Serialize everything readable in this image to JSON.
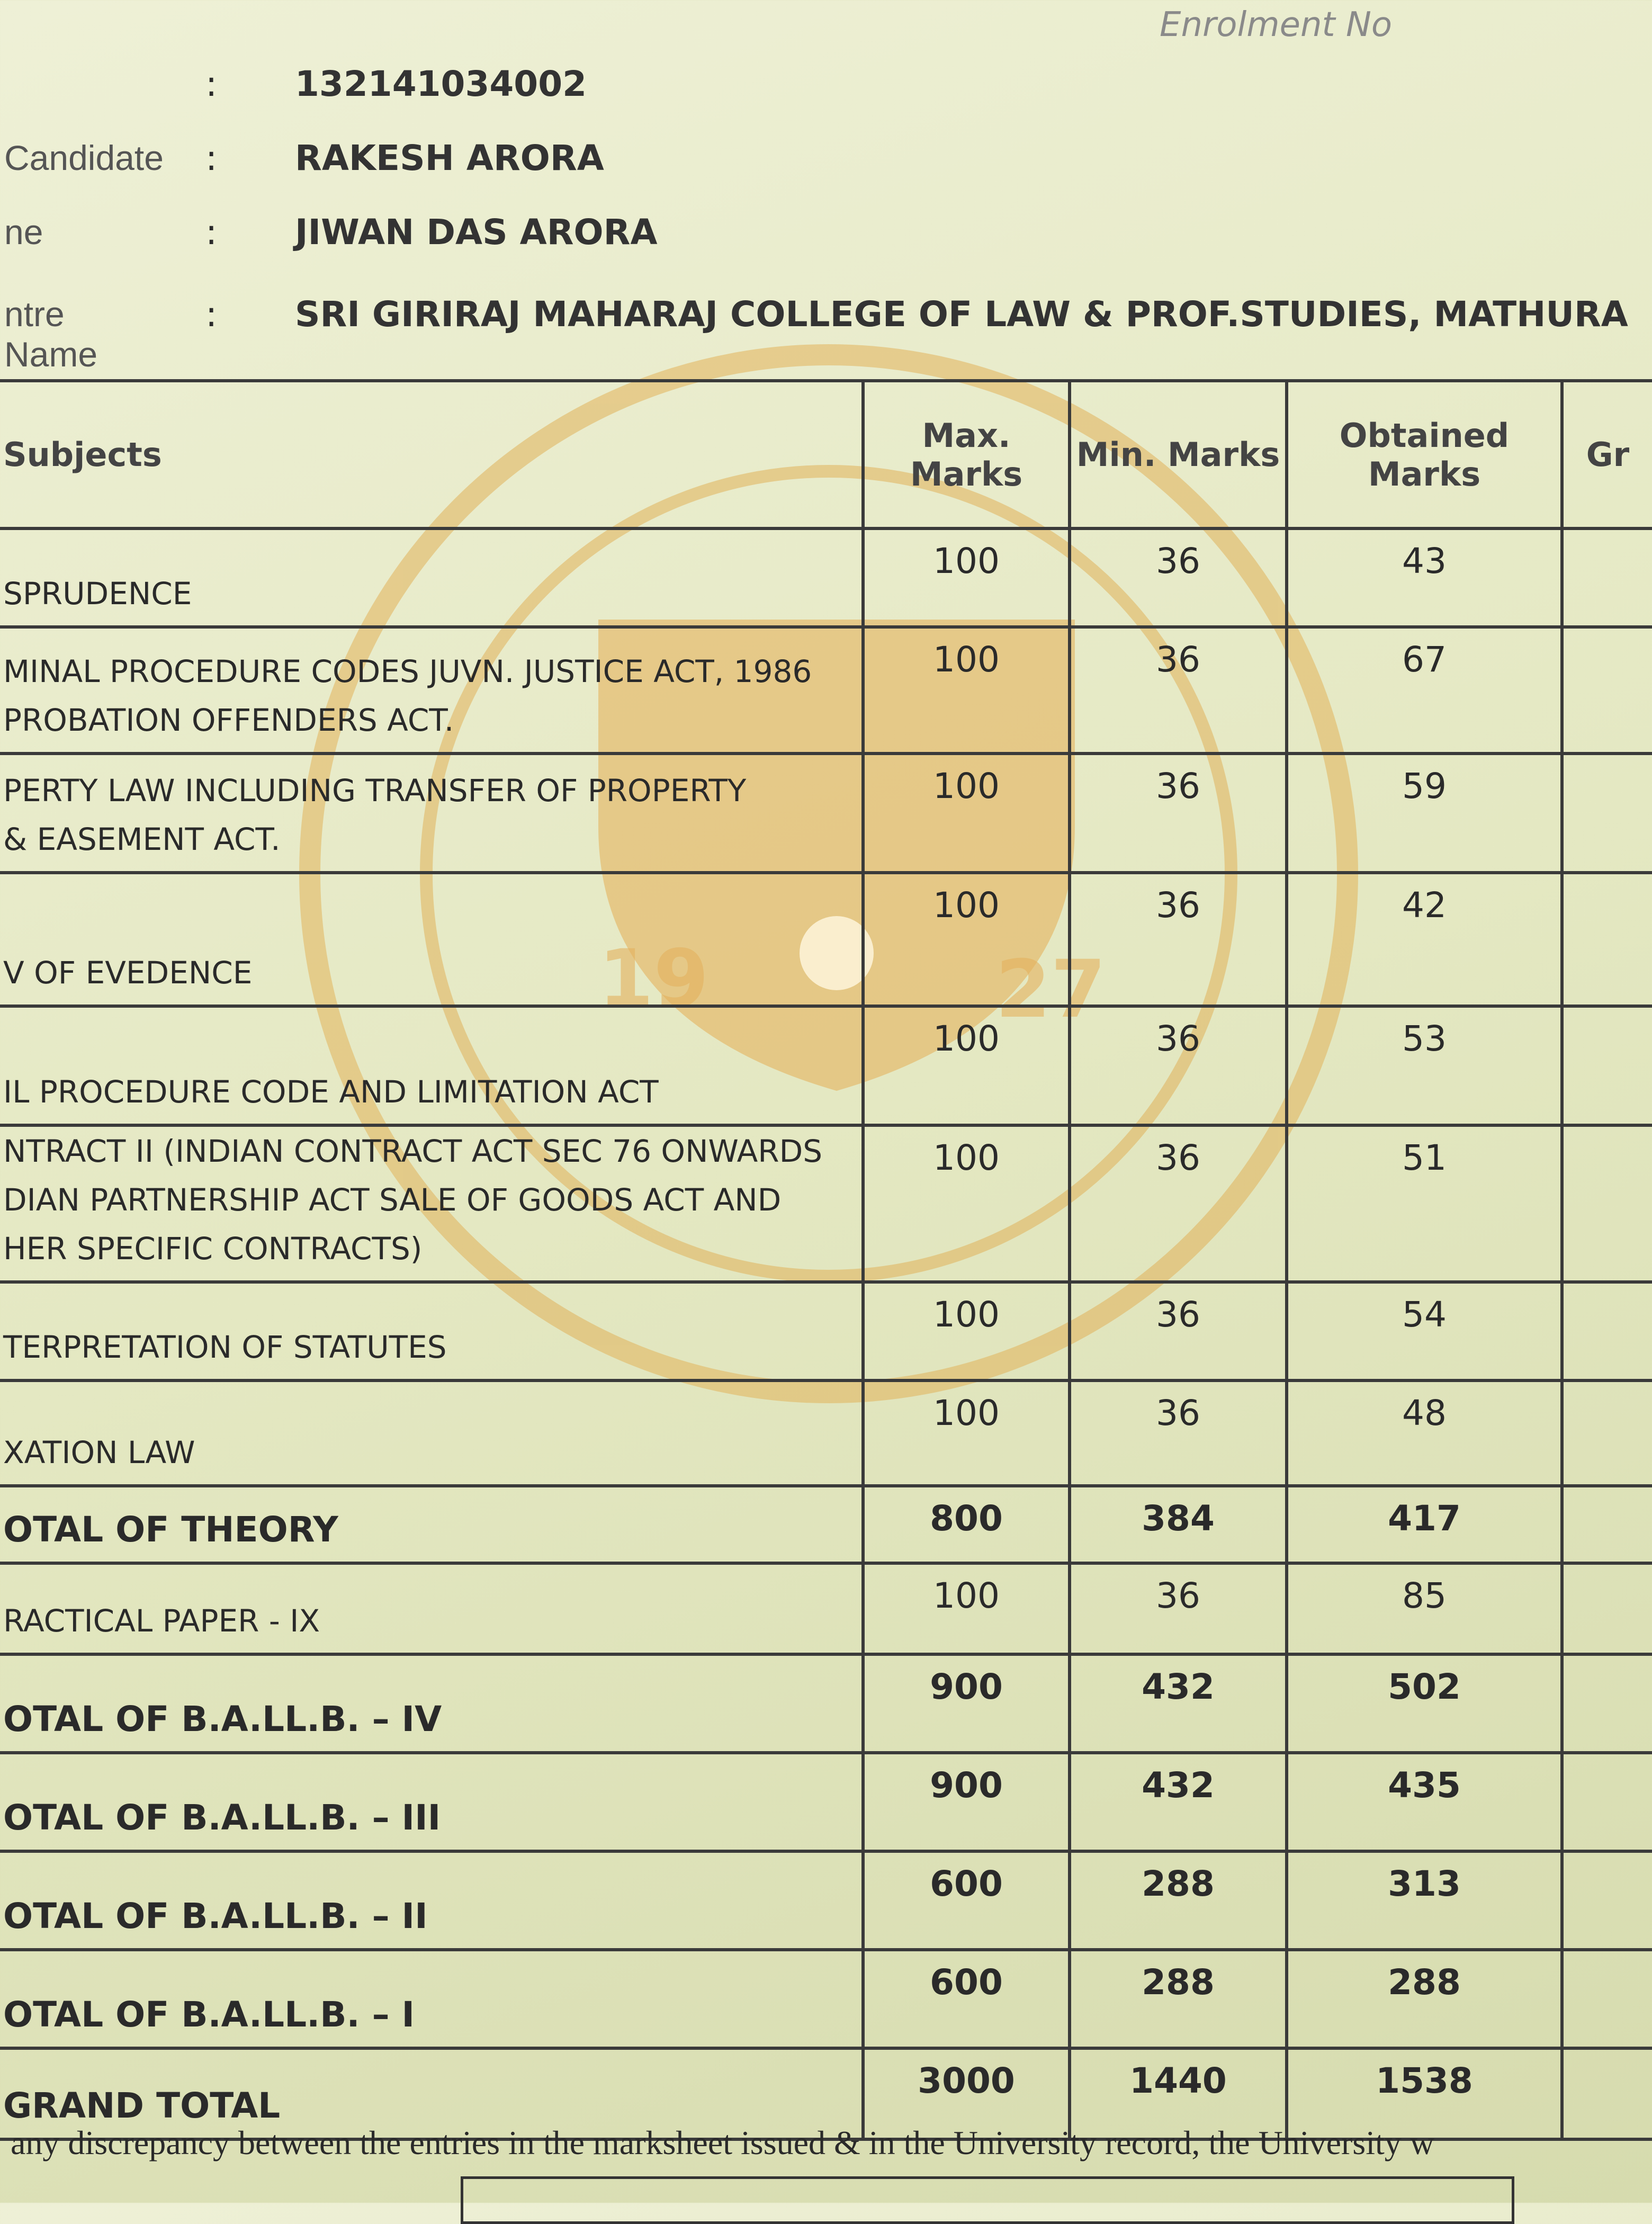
{
  "corner_text": "Enrolment No",
  "fields": [
    {
      "value": "132141034002"
    },
    {
      "label": "Candidate",
      "value": "RAKESH ARORA"
    },
    {
      "label": "ne",
      "value": "JIWAN DAS ARORA"
    },
    {
      "label": "ntre Name",
      "value": "SRI GIRIRAJ MAHARAJ COLLEGE OF LAW & PROF.STUDIES, MATHURA"
    }
  ],
  "table": {
    "headers": [
      "Subjects",
      "Max. Marks",
      "Min. Marks",
      "Obtained Marks",
      "Gr"
    ],
    "rows": [
      {
        "subject": [
          "SPRUDENCE"
        ],
        "max": 100,
        "min": 36,
        "obtained": 43
      },
      {
        "subject": [
          "MINAL PROCEDURE CODES JUVN. JUSTICE ACT, 1986",
          "PROBATION OFFENDERS ACT."
        ],
        "max": 100,
        "min": 36,
        "obtained": 67
      },
      {
        "subject": [
          "PERTY LAW INCLUDING TRANSFER OF PROPERTY",
          "& EASEMENT ACT."
        ],
        "max": 100,
        "min": 36,
        "obtained": 59
      },
      {
        "subject": [
          "V OF EVEDENCE"
        ],
        "max": 100,
        "min": 36,
        "obtained": 42
      },
      {
        "subject": [
          "IL PROCEDURE CODE AND LIMITATION ACT"
        ],
        "max": 100,
        "min": 36,
        "obtained": 53
      },
      {
        "subject": [
          "NTRACT II (INDIAN CONTRACT ACT SEC 76 ONWARDS",
          "DIAN PARTNERSHIP ACT SALE OF GOODS ACT AND",
          "HER SPECIFIC CONTRACTS)"
        ],
        "max": 100,
        "min": 36,
        "obtained": 51
      },
      {
        "subject": [
          "TERPRETATION OF STATUTES"
        ],
        "max": 100,
        "min": 36,
        "obtained": 54
      },
      {
        "subject": [
          "XATION LAW"
        ],
        "max": 100,
        "min": 36,
        "obtained": 48
      },
      {
        "subject": [
          "OTAL OF THEORY"
        ],
        "max": 800,
        "min": 384,
        "obtained": 417,
        "bold": true
      },
      {
        "subject": [
          "RACTICAL PAPER - IX"
        ],
        "max": 100,
        "min": 36,
        "obtained": 85
      },
      {
        "subject": [
          "OTAL OF B.A.LL.B. – IV"
        ],
        "max": 900,
        "min": 432,
        "obtained": 502,
        "bold": true
      },
      {
        "subject": [
          "OTAL OF B.A.LL.B. – III"
        ],
        "max": 900,
        "min": 432,
        "obtained": 435,
        "bold": true
      },
      {
        "subject": [
          "OTAL OF B.A.LL.B. – II"
        ],
        "max": 600,
        "min": 288,
        "obtained": 313,
        "bold": true
      },
      {
        "subject": [
          "OTAL OF B.A.LL.B. – I"
        ],
        "max": 600,
        "min": 288,
        "obtained": 288,
        "bold": true
      },
      {
        "subject": [
          "GRAND TOTAL"
        ],
        "max": 3000,
        "min": 1440,
        "obtained": 1538,
        "bold": true
      }
    ]
  },
  "footer": "any discrepancy between the entries in the marksheet issued & in the University record, the University w"
}
